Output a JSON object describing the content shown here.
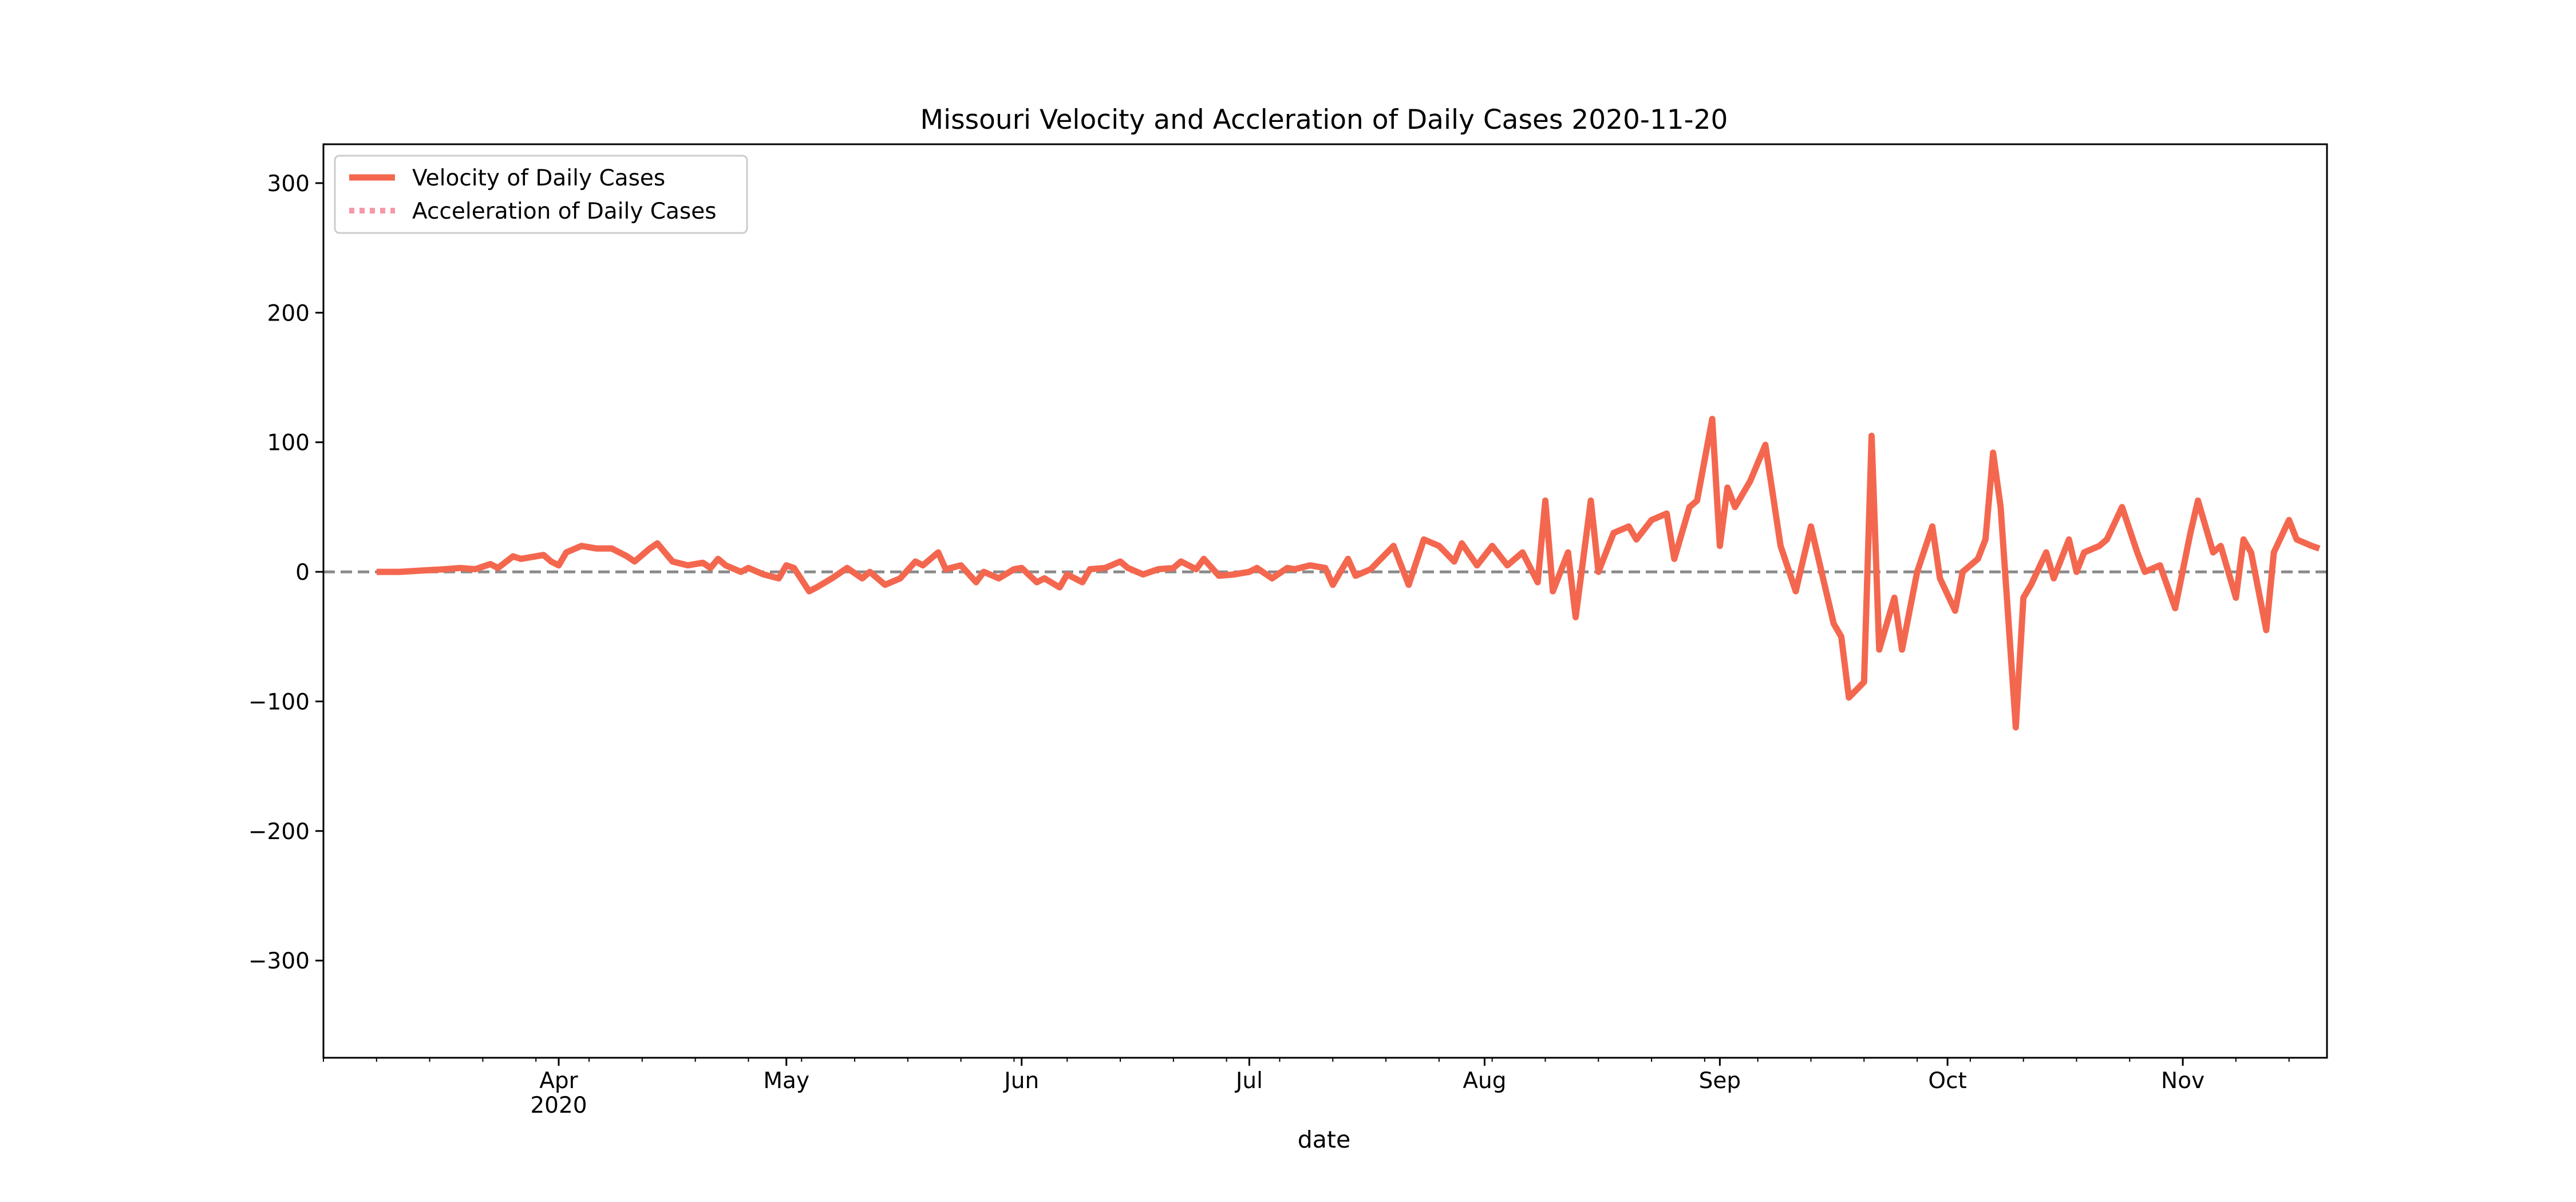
{
  "chart_data": {
    "type": "line",
    "title": "Missouri Velocity and Accleration of Daily Cases 2020-11-20",
    "xlabel": "date",
    "ylabel": "",
    "xlim": [
      "2020-03-01",
      "2020-11-20"
    ],
    "ylim": [
      -375,
      330
    ],
    "grid": false,
    "legend_position": "upper left",
    "zero_line": {
      "y": 0,
      "style": "dashed",
      "color": "#8a8a8a"
    },
    "x_ticks": [
      {
        "date": "2020-04-01",
        "label": "Apr",
        "sublabel": "2020"
      },
      {
        "date": "2020-05-01",
        "label": "May"
      },
      {
        "date": "2020-06-01",
        "label": "Jun"
      },
      {
        "date": "2020-07-01",
        "label": "Jul"
      },
      {
        "date": "2020-08-01",
        "label": "Aug"
      },
      {
        "date": "2020-09-01",
        "label": "Sep"
      },
      {
        "date": "2020-10-01",
        "label": "Oct"
      },
      {
        "date": "2020-11-01",
        "label": "Nov"
      }
    ],
    "y_ticks": [
      {
        "value": 300,
        "label": "300"
      },
      {
        "value": 200,
        "label": "200"
      },
      {
        "value": 100,
        "label": "100"
      },
      {
        "value": 0,
        "label": "0"
      },
      {
        "value": -100,
        "label": "−100"
      },
      {
        "value": -200,
        "label": "−200"
      },
      {
        "value": -300,
        "label": "−300"
      }
    ],
    "series": [
      {
        "name": "Velocity of Daily Cases",
        "color": "#f4674f",
        "style": "solid",
        "points": [
          [
            "2020-03-08",
            0
          ],
          [
            "2020-03-11",
            0
          ],
          [
            "2020-03-14",
            1
          ],
          [
            "2020-03-17",
            2
          ],
          [
            "2020-03-19",
            3
          ],
          [
            "2020-03-21",
            2
          ],
          [
            "2020-03-23",
            6
          ],
          [
            "2020-03-24",
            3
          ],
          [
            "2020-03-26",
            12
          ],
          [
            "2020-03-27",
            10
          ],
          [
            "2020-03-29",
            12
          ],
          [
            "2020-03-30",
            13
          ],
          [
            "2020-03-31",
            8
          ],
          [
            "2020-04-01",
            5
          ],
          [
            "2020-04-02",
            15
          ],
          [
            "2020-04-04",
            20
          ],
          [
            "2020-04-06",
            18
          ],
          [
            "2020-04-08",
            18
          ],
          [
            "2020-04-10",
            12
          ],
          [
            "2020-04-11",
            8
          ],
          [
            "2020-04-13",
            18
          ],
          [
            "2020-04-14",
            22
          ],
          [
            "2020-04-16",
            8
          ],
          [
            "2020-04-18",
            5
          ],
          [
            "2020-04-20",
            7
          ],
          [
            "2020-04-21",
            3
          ],
          [
            "2020-04-22",
            10
          ],
          [
            "2020-04-23",
            5
          ],
          [
            "2020-04-25",
            0
          ],
          [
            "2020-04-26",
            3
          ],
          [
            "2020-04-28",
            -2
          ],
          [
            "2020-04-30",
            -5
          ],
          [
            "2020-05-01",
            5
          ],
          [
            "2020-05-02",
            3
          ],
          [
            "2020-05-04",
            -15
          ],
          [
            "2020-05-05",
            -12
          ],
          [
            "2020-05-07",
            -5
          ],
          [
            "2020-05-09",
            3
          ],
          [
            "2020-05-11",
            -5
          ],
          [
            "2020-05-12",
            0
          ],
          [
            "2020-05-14",
            -10
          ],
          [
            "2020-05-16",
            -5
          ],
          [
            "2020-05-18",
            8
          ],
          [
            "2020-05-19",
            5
          ],
          [
            "2020-05-21",
            15
          ],
          [
            "2020-05-22",
            2
          ],
          [
            "2020-05-24",
            5
          ],
          [
            "2020-05-26",
            -8
          ],
          [
            "2020-05-27",
            0
          ],
          [
            "2020-05-29",
            -5
          ],
          [
            "2020-05-31",
            2
          ],
          [
            "2020-06-01",
            3
          ],
          [
            "2020-06-03",
            -8
          ],
          [
            "2020-06-04",
            -5
          ],
          [
            "2020-06-06",
            -12
          ],
          [
            "2020-06-07",
            -2
          ],
          [
            "2020-06-09",
            -8
          ],
          [
            "2020-06-10",
            2
          ],
          [
            "2020-06-12",
            3
          ],
          [
            "2020-06-14",
            8
          ],
          [
            "2020-06-15",
            3
          ],
          [
            "2020-06-17",
            -2
          ],
          [
            "2020-06-19",
            2
          ],
          [
            "2020-06-21",
            3
          ],
          [
            "2020-06-22",
            8
          ],
          [
            "2020-06-24",
            2
          ],
          [
            "2020-06-25",
            10
          ],
          [
            "2020-06-27",
            -3
          ],
          [
            "2020-06-29",
            -2
          ],
          [
            "2020-07-01",
            0
          ],
          [
            "2020-07-02",
            3
          ],
          [
            "2020-07-04",
            -5
          ],
          [
            "2020-07-06",
            3
          ],
          [
            "2020-07-07",
            2
          ],
          [
            "2020-07-09",
            5
          ],
          [
            "2020-07-11",
            3
          ],
          [
            "2020-07-12",
            -10
          ],
          [
            "2020-07-14",
            10
          ],
          [
            "2020-07-15",
            -3
          ],
          [
            "2020-07-17",
            2
          ],
          [
            "2020-07-20",
            20
          ],
          [
            "2020-07-22",
            -10
          ],
          [
            "2020-07-24",
            25
          ],
          [
            "2020-07-26",
            20
          ],
          [
            "2020-07-28",
            8
          ],
          [
            "2020-07-29",
            22
          ],
          [
            "2020-07-31",
            5
          ],
          [
            "2020-08-02",
            20
          ],
          [
            "2020-08-04",
            5
          ],
          [
            "2020-08-06",
            15
          ],
          [
            "2020-08-08",
            -8
          ],
          [
            "2020-08-09",
            55
          ],
          [
            "2020-08-10",
            -15
          ],
          [
            "2020-08-12",
            15
          ],
          [
            "2020-08-13",
            -35
          ],
          [
            "2020-08-15",
            55
          ],
          [
            "2020-08-16",
            0
          ],
          [
            "2020-08-18",
            30
          ],
          [
            "2020-08-20",
            35
          ],
          [
            "2020-08-21",
            25
          ],
          [
            "2020-08-23",
            40
          ],
          [
            "2020-08-25",
            45
          ],
          [
            "2020-08-26",
            10
          ],
          [
            "2020-08-28",
            50
          ],
          [
            "2020-08-29",
            55
          ],
          [
            "2020-08-31",
            118
          ],
          [
            "2020-09-01",
            20
          ],
          [
            "2020-09-02",
            65
          ],
          [
            "2020-09-03",
            50
          ],
          [
            "2020-09-05",
            70
          ],
          [
            "2020-09-07",
            98
          ],
          [
            "2020-09-09",
            20
          ],
          [
            "2020-09-11",
            -15
          ],
          [
            "2020-09-13",
            35
          ],
          [
            "2020-09-14",
            10
          ],
          [
            "2020-09-16",
            -40
          ],
          [
            "2020-09-17",
            -50
          ],
          [
            "2020-09-18",
            -97
          ],
          [
            "2020-09-20",
            -85
          ],
          [
            "2020-09-21",
            105
          ],
          [
            "2020-09-22",
            -60
          ],
          [
            "2020-09-24",
            -20
          ],
          [
            "2020-09-25",
            -60
          ],
          [
            "2020-09-27",
            0
          ],
          [
            "2020-09-29",
            35
          ],
          [
            "2020-09-30",
            -5
          ],
          [
            "2020-10-02",
            -30
          ],
          [
            "2020-10-03",
            0
          ],
          [
            "2020-10-05",
            10
          ],
          [
            "2020-10-06",
            25
          ],
          [
            "2020-10-07",
            92
          ],
          [
            "2020-10-08",
            50
          ],
          [
            "2020-10-10",
            -120
          ],
          [
            "2020-10-11",
            -20
          ],
          [
            "2020-10-12",
            -10
          ],
          [
            "2020-10-14",
            15
          ],
          [
            "2020-10-15",
            -5
          ],
          [
            "2020-10-17",
            25
          ],
          [
            "2020-10-18",
            0
          ],
          [
            "2020-10-19",
            15
          ],
          [
            "2020-10-21",
            20
          ],
          [
            "2020-10-22",
            25
          ],
          [
            "2020-10-24",
            50
          ],
          [
            "2020-10-26",
            15
          ],
          [
            "2020-10-27",
            0
          ],
          [
            "2020-10-29",
            5
          ],
          [
            "2020-10-31",
            -28
          ],
          [
            "2020-11-02",
            30
          ],
          [
            "2020-11-03",
            55
          ],
          [
            "2020-11-05",
            15
          ],
          [
            "2020-11-06",
            20
          ],
          [
            "2020-11-08",
            -20
          ],
          [
            "2020-11-09",
            25
          ],
          [
            "2020-11-10",
            15
          ],
          [
            "2020-11-12",
            -45
          ],
          [
            "2020-11-13",
            15
          ],
          [
            "2020-11-15",
            40
          ],
          [
            "2020-11-16",
            25
          ],
          [
            "2020-11-18",
            20
          ],
          [
            "2020-11-19",
            18
          ]
        ]
      },
      {
        "name": "Acceleration of Daily Cases",
        "color": "#f598a8",
        "style": "dotted",
        "points": []
      }
    ]
  },
  "legend": {
    "items": [
      {
        "label": "Velocity of Daily Cases"
      },
      {
        "label": "Acceleration of Daily Cases"
      }
    ]
  }
}
